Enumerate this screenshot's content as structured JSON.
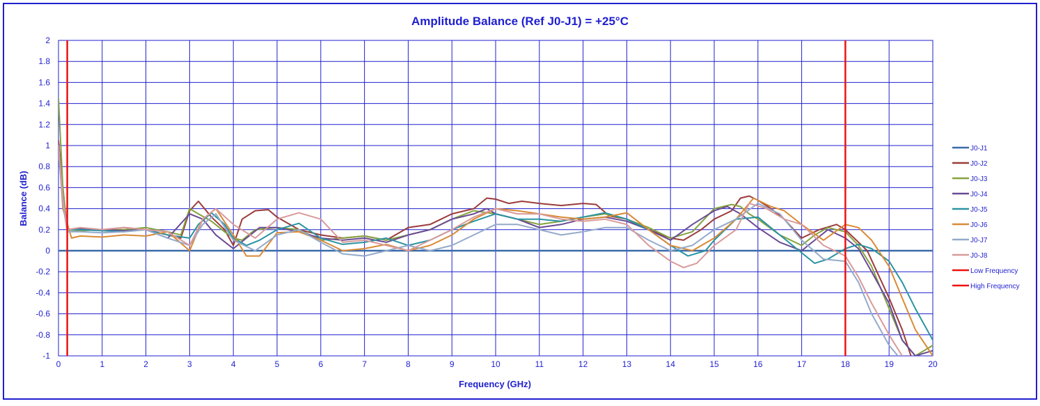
{
  "chart_data": {
    "type": "line",
    "title": "Amplitude Balance (Ref J0-J1) = +25°C",
    "xlabel": "Frequency (GHz)",
    "ylabel": "Balance (dB)",
    "xlim": [
      0,
      20
    ],
    "ylim": [
      -1,
      2
    ],
    "xticks": [
      "0",
      "1",
      "2",
      "3",
      "4",
      "5",
      "6",
      "7",
      "8",
      "9",
      "10",
      "11",
      "12",
      "13",
      "14",
      "15",
      "16",
      "17",
      "18",
      "19",
      "20"
    ],
    "yticks": [
      "-1",
      "-0.8",
      "-0.6",
      "-0.4",
      "-0.2",
      "0",
      "0.2",
      "0.4",
      "0.6",
      "0.8",
      "1",
      "1.2",
      "1.4",
      "1.6",
      "1.8",
      "2"
    ],
    "grid": true,
    "legend_position": "right",
    "colors": {
      "frame": "#1f1fcf",
      "grid": "#1f1fcf",
      "text": "#1f1fcf"
    },
    "series": [
      {
        "name": "J0-J1",
        "color": "#3a6aa8",
        "x": [
          0,
          20
        ],
        "y": [
          0,
          0
        ]
      },
      {
        "name": "J0-J2",
        "color": "#9b3b3b",
        "x": [
          0,
          0.1,
          0.2,
          0.5,
          1,
          1.5,
          2,
          2.5,
          2.8,
          3,
          3.2,
          3.5,
          3.8,
          4,
          4.2,
          4.5,
          4.8,
          5,
          5.5,
          6,
          6.5,
          7,
          7.5,
          8,
          8.5,
          9,
          9.5,
          9.8,
          10,
          10.3,
          10.6,
          11,
          11.5,
          12,
          12.3,
          12.6,
          13,
          13.5,
          14,
          14.3,
          14.7,
          15,
          15.4,
          15.6,
          15.8,
          16,
          16.3,
          16.6,
          17,
          17.4,
          17.8,
          18,
          18.2,
          18.5,
          19,
          19.3,
          19.5
        ],
        "y": [
          1.05,
          0.6,
          0.2,
          0.21,
          0.2,
          0.22,
          0.2,
          0.15,
          0.12,
          0.38,
          0.47,
          0.32,
          0.2,
          0.05,
          0.3,
          0.38,
          0.39,
          0.32,
          0.2,
          0.15,
          0.12,
          0.14,
          0.1,
          0.22,
          0.25,
          0.35,
          0.4,
          0.5,
          0.49,
          0.45,
          0.47,
          0.45,
          0.43,
          0.45,
          0.44,
          0.33,
          0.3,
          0.2,
          0.12,
          0.1,
          0.2,
          0.3,
          0.38,
          0.5,
          0.52,
          0.48,
          0.4,
          0.3,
          0.12,
          0.2,
          0.25,
          0.2,
          0.12,
          0.0,
          -0.45,
          -0.75,
          -1.0
        ]
      },
      {
        "name": "J0-J3",
        "color": "#84a33f",
        "x": [
          0,
          0.1,
          0.2,
          0.5,
          1,
          1.5,
          2,
          2.5,
          2.8,
          3,
          3.2,
          3.5,
          3.8,
          4,
          4.2,
          4.5,
          5,
          5.5,
          6,
          6.5,
          7,
          7.5,
          8,
          8.5,
          9,
          9.5,
          10,
          10.5,
          11,
          11.5,
          12,
          12.5,
          13,
          13.5,
          14,
          14.5,
          15,
          15.4,
          15.6,
          15.8,
          16,
          16.5,
          17,
          17.3,
          17.6,
          18,
          18.3,
          18.6,
          19,
          19.3,
          19.6,
          20
        ],
        "y": [
          1.45,
          0.6,
          0.18,
          0.19,
          0.2,
          0.2,
          0.22,
          0.18,
          0.15,
          0.4,
          0.35,
          0.28,
          0.18,
          0.12,
          0.1,
          0.2,
          0.22,
          0.2,
          0.1,
          0.12,
          0.14,
          0.1,
          0.15,
          0.2,
          0.3,
          0.38,
          0.35,
          0.3,
          0.25,
          0.28,
          0.32,
          0.35,
          0.3,
          0.22,
          0.12,
          0.18,
          0.4,
          0.44,
          0.42,
          0.35,
          0.3,
          0.15,
          0.05,
          0.15,
          0.22,
          0.18,
          0.05,
          -0.15,
          -0.55,
          -0.85,
          -1.0,
          -0.9
        ]
      },
      {
        "name": "J0-J4",
        "color": "#6a4a94",
        "x": [
          0,
          0.1,
          0.2,
          0.5,
          1,
          1.5,
          2,
          2.5,
          3,
          3.3,
          3.6,
          4,
          4.3,
          4.6,
          5,
          5.5,
          6,
          6.5,
          7,
          7.5,
          8,
          8.5,
          9,
          9.5,
          9.8,
          10,
          10.5,
          11,
          11.5,
          12,
          12.5,
          13,
          13.5,
          14,
          14.5,
          15,
          15.3,
          15.6,
          16,
          16.5,
          17,
          17.3,
          17.6,
          18,
          18.3,
          18.6,
          19,
          19.3,
          19.6,
          20
        ],
        "y": [
          1.0,
          0.5,
          0.2,
          0.21,
          0.2,
          0.19,
          0.2,
          0.12,
          0.35,
          0.3,
          0.15,
          0.02,
          0.12,
          0.22,
          0.22,
          0.18,
          0.12,
          0.1,
          0.12,
          0.08,
          0.15,
          0.2,
          0.3,
          0.35,
          0.4,
          0.35,
          0.3,
          0.22,
          0.25,
          0.3,
          0.32,
          0.28,
          0.2,
          0.1,
          0.25,
          0.38,
          0.42,
          0.35,
          0.22,
          0.08,
          0.0,
          0.1,
          0.2,
          0.12,
          0.02,
          -0.2,
          -0.5,
          -0.85,
          -1.0,
          -0.95
        ]
      },
      {
        "name": "J0-J5",
        "color": "#2b93a3",
        "x": [
          0,
          0.1,
          0.2,
          0.5,
          1,
          1.5,
          2,
          2.5,
          3,
          3.2,
          3.5,
          3.8,
          4,
          4.3,
          4.6,
          5,
          5.5,
          6,
          6.5,
          7,
          7.5,
          8,
          8.5,
          9,
          9.5,
          10,
          10.5,
          11,
          11.5,
          12,
          12.5,
          13,
          13.5,
          14,
          14.4,
          14.8,
          15,
          15.5,
          16,
          16.5,
          17,
          17.3,
          17.6,
          18,
          18.3,
          18.6,
          19,
          19.3,
          19.6,
          20
        ],
        "y": [
          1.0,
          0.5,
          0.2,
          0.2,
          0.19,
          0.18,
          0.2,
          0.15,
          0.12,
          0.25,
          0.36,
          0.25,
          0.12,
          0.05,
          0.1,
          0.2,
          0.26,
          0.12,
          0.06,
          0.08,
          0.12,
          0.05,
          0.1,
          0.2,
          0.28,
          0.35,
          0.3,
          0.3,
          0.28,
          0.32,
          0.36,
          0.3,
          0.2,
          0.05,
          -0.05,
          0.0,
          0.1,
          0.3,
          0.32,
          0.15,
          -0.02,
          -0.12,
          -0.08,
          0.02,
          0.06,
          0.02,
          -0.1,
          -0.3,
          -0.55,
          -0.85
        ]
      },
      {
        "name": "J0-J6",
        "color": "#d98a35",
        "x": [
          0,
          0.1,
          0.3,
          0.5,
          1,
          1.5,
          2,
          2.5,
          3,
          3.3,
          3.6,
          4,
          4.3,
          4.6,
          5,
          5.5,
          6,
          6.5,
          7,
          7.5,
          8,
          8.5,
          9,
          9.5,
          10,
          10.5,
          11,
          11.5,
          12,
          12.5,
          13,
          13.5,
          14,
          14.5,
          15,
          15.5,
          15.9,
          16.3,
          16.6,
          17,
          17.5,
          18,
          18.3,
          18.6,
          19,
          19.3,
          19.6,
          20
        ],
        "y": [
          1.0,
          0.4,
          0.12,
          0.14,
          0.13,
          0.15,
          0.14,
          0.18,
          0.0,
          0.3,
          0.4,
          0.15,
          -0.05,
          -0.05,
          0.17,
          0.18,
          0.1,
          0.0,
          0.02,
          0.06,
          0.0,
          0.05,
          0.15,
          0.3,
          0.4,
          0.38,
          0.35,
          0.32,
          0.3,
          0.32,
          0.36,
          0.2,
          0.05,
          0.0,
          0.12,
          0.3,
          0.5,
          0.42,
          0.38,
          0.25,
          0.1,
          0.25,
          0.22,
          0.1,
          -0.15,
          -0.45,
          -0.75,
          -1.0
        ]
      },
      {
        "name": "J0-J7",
        "color": "#94aac9",
        "x": [
          0,
          0.1,
          0.2,
          0.5,
          1,
          1.5,
          2,
          2.5,
          3,
          3.3,
          3.6,
          4,
          4.5,
          5,
          5.5,
          6,
          6.5,
          7,
          7.5,
          8,
          8.5,
          9,
          9.5,
          10,
          10.5,
          11,
          11.5,
          12,
          12.5,
          13,
          13.5,
          14,
          14.5,
          15,
          15.5,
          16,
          16.5,
          17,
          17.5,
          18,
          18.3,
          18.6,
          19,
          19.2
        ],
        "y": [
          0.95,
          0.45,
          0.18,
          0.18,
          0.17,
          0.18,
          0.2,
          0.12,
          0.05,
          0.25,
          0.35,
          0.1,
          0.0,
          0.15,
          0.2,
          0.08,
          -0.03,
          -0.05,
          0.0,
          0.05,
          0.0,
          0.05,
          0.15,
          0.25,
          0.25,
          0.2,
          0.15,
          0.18,
          0.22,
          0.22,
          0.1,
          0.0,
          0.05,
          0.2,
          0.3,
          0.45,
          0.35,
          0.1,
          -0.08,
          -0.1,
          -0.3,
          -0.6,
          -0.9,
          -1.0
        ]
      },
      {
        "name": "J0-J8",
        "color": "#d99a9a",
        "x": [
          0,
          0.1,
          0.2,
          0.5,
          1,
          1.5,
          2,
          2.5,
          3,
          3.3,
          3.6,
          4,
          4.5,
          5,
          5.5,
          6,
          6.5,
          7,
          7.5,
          8,
          8.5,
          9,
          9.5,
          10,
          10.5,
          11,
          11.5,
          12,
          12.5,
          13,
          13.5,
          14,
          14.3,
          14.6,
          15,
          15.5,
          15.8,
          16.2,
          16.6,
          17,
          17.5,
          18,
          18.3,
          18.6,
          19,
          19.3
        ],
        "y": [
          1.0,
          0.5,
          0.2,
          0.22,
          0.2,
          0.22,
          0.2,
          0.18,
          0.05,
          0.3,
          0.4,
          0.25,
          0.12,
          0.3,
          0.36,
          0.3,
          0.08,
          0.1,
          0.05,
          0.0,
          0.1,
          0.2,
          0.32,
          0.4,
          0.35,
          0.35,
          0.3,
          0.28,
          0.3,
          0.25,
          0.05,
          -0.1,
          -0.16,
          -0.12,
          0.05,
          0.2,
          0.45,
          0.4,
          0.3,
          0.25,
          0.05,
          -0.05,
          -0.25,
          -0.5,
          -0.8,
          -1.0
        ]
      },
      {
        "name": "Low Frequency",
        "color": "#ee1111",
        "x": [
          0.2,
          0.2
        ],
        "y": [
          -1,
          2
        ]
      },
      {
        "name": "High Frequency",
        "color": "#ee1111",
        "x": [
          18,
          18
        ],
        "y": [
          -1,
          2
        ]
      }
    ]
  }
}
